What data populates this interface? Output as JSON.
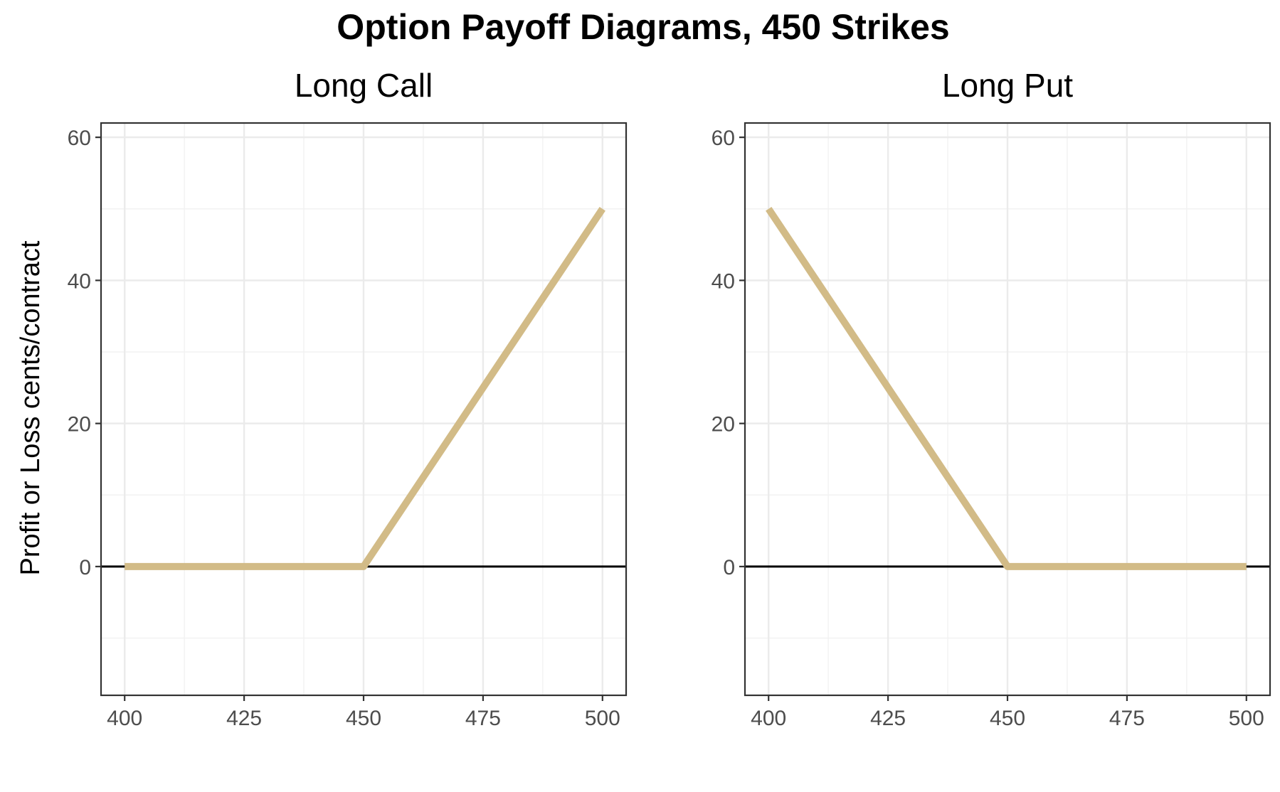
{
  "chart_data": {
    "title": "Option Payoff Diagrams, 450 Strikes",
    "ylabel": "Profit or Loss cents/contract",
    "type": "line",
    "xlim": [
      400,
      500
    ],
    "ylim": [
      -18,
      62
    ],
    "x_ticks": [
      "400",
      "425",
      "450",
      "475",
      "500"
    ],
    "x_tick_values": [
      400,
      425,
      450,
      475,
      500
    ],
    "y_ticks": [
      "0",
      "20",
      "40",
      "60"
    ],
    "y_tick_values": [
      0,
      20,
      40,
      60
    ],
    "reference_line_y": 0,
    "grid": true,
    "line_color": "#d2bb87",
    "panels": [
      {
        "title": "Long Call",
        "x": [
          400,
          450,
          500
        ],
        "y": [
          0,
          0,
          50
        ]
      },
      {
        "title": "Long Put",
        "x": [
          400,
          450,
          500
        ],
        "y": [
          50,
          0,
          0
        ]
      }
    ]
  }
}
